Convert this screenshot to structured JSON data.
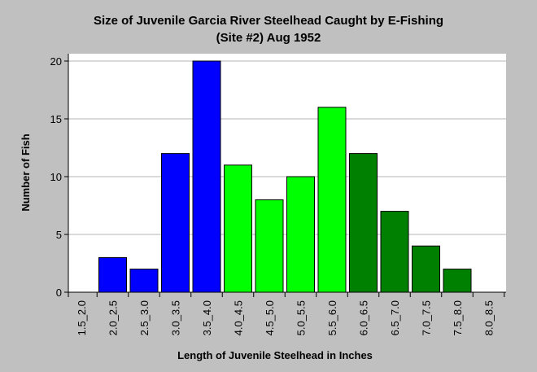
{
  "chart_data": {
    "type": "bar",
    "title": "Size of Juvenile Garcia River Steelhead Caught by E-Fishing",
    "subtitle": "(Site #2) Aug 1952",
    "xlabel": "Length of Juvenile Steelhead in Inches",
    "ylabel": "Number of Fish",
    "ylim": [
      0,
      20
    ],
    "yticks": [
      0,
      5,
      10,
      15,
      20
    ],
    "grid": true,
    "categories": [
      "1.5_2.0",
      "2.0_2.5",
      "2.5_3.0",
      "3.0_3.5",
      "3.5_4.0",
      "4.0_4.5",
      "4.5_5.0",
      "5.0_5.5",
      "5.5_6.0",
      "6.0_6.5",
      "6.5_7.0",
      "7.0_7.5",
      "7.5_8.0",
      "8.0_8.5"
    ],
    "values": [
      0,
      3,
      2,
      12,
      20,
      11,
      8,
      10,
      16,
      12,
      7,
      4,
      2,
      0
    ],
    "colors": [
      "#0000ff",
      "#0000ff",
      "#0000ff",
      "#0000ff",
      "#0000ff",
      "#00ff00",
      "#00ff00",
      "#00ff00",
      "#00ff00",
      "#008000",
      "#008000",
      "#008000",
      "#008000",
      "#008000"
    ],
    "plot_background": "#ffffff",
    "page_background": "#c0c0c0"
  }
}
